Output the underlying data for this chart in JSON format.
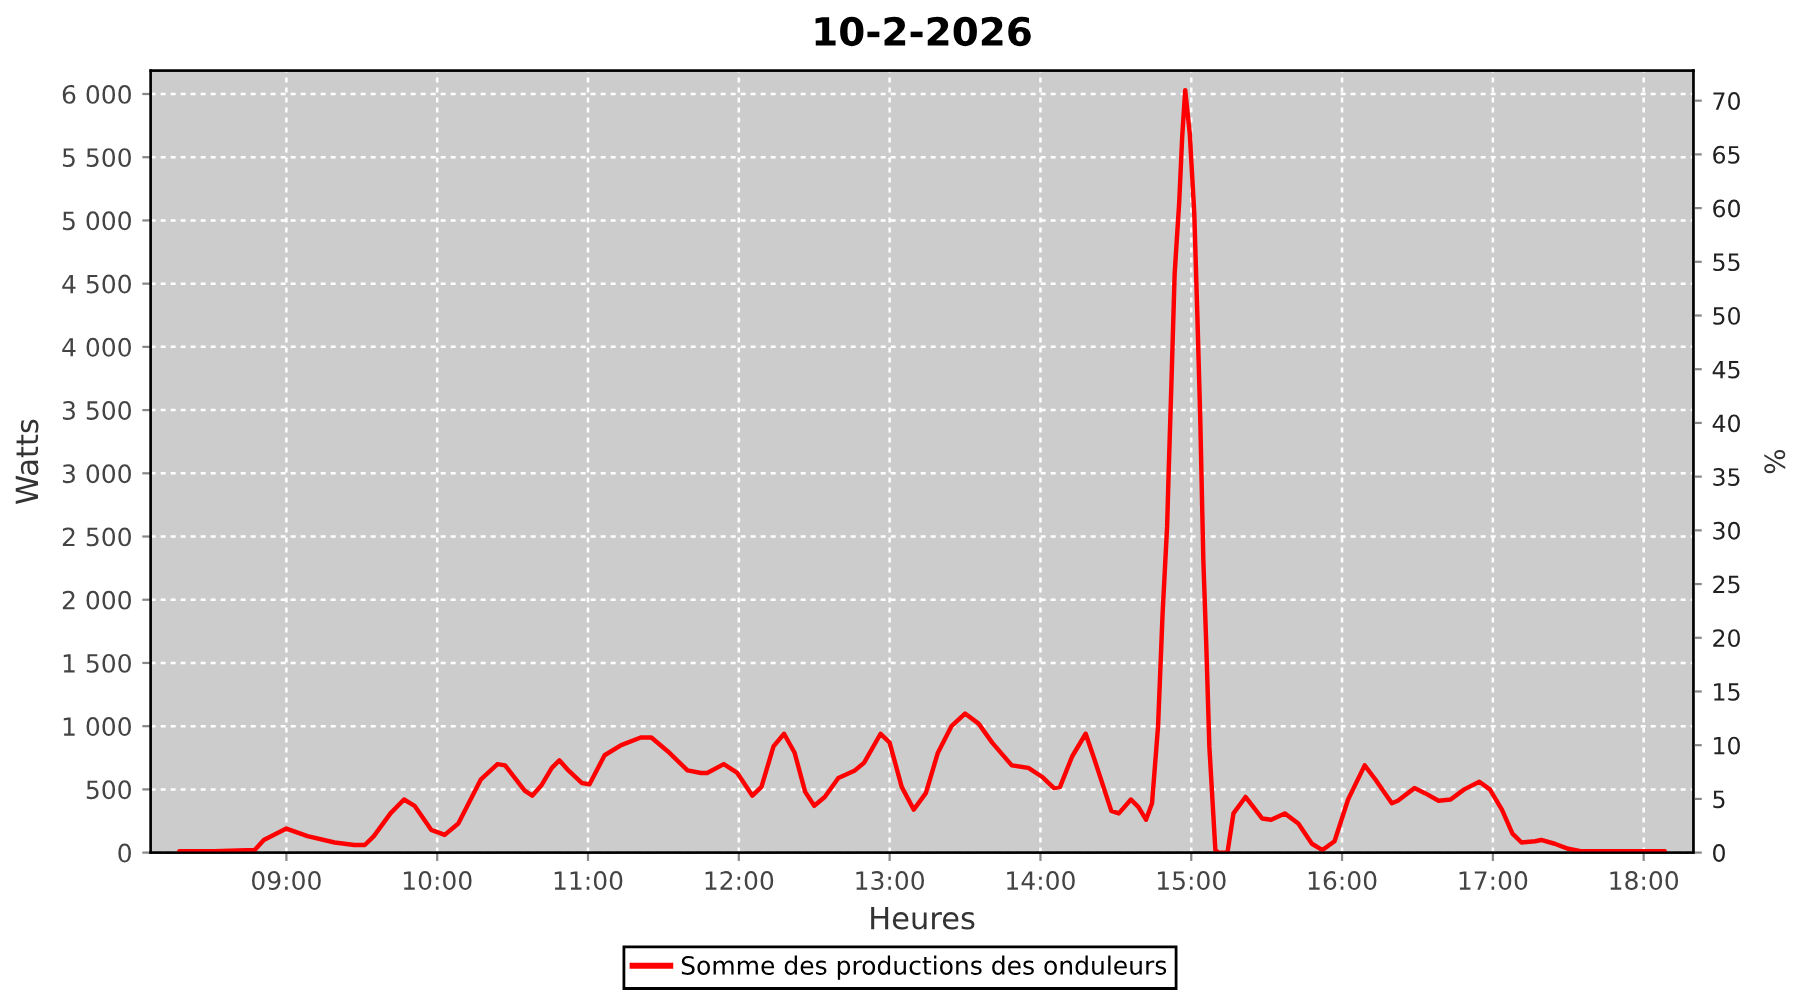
{
  "chart_data": {
    "type": "line",
    "title": "10-2-2026",
    "xlabel": "Heures",
    "ylabel": "Watts",
    "y2label": "%",
    "x": [
      8.29,
      8.52,
      8.79,
      8.85,
      9.0,
      9.14,
      9.32,
      9.45,
      9.52,
      9.58,
      9.69,
      9.78,
      9.85,
      9.96,
      10.05,
      10.14,
      10.29,
      10.4,
      10.45,
      10.58,
      10.63,
      10.69,
      10.76,
      10.81,
      10.87,
      10.96,
      11.01,
      11.11,
      11.22,
      11.35,
      11.42,
      11.53,
      11.66,
      11.75,
      11.79,
      11.9,
      11.99,
      12.09,
      12.15,
      12.23,
      12.3,
      12.37,
      12.44,
      12.5,
      12.57,
      12.66,
      12.77,
      12.83,
      12.94,
      13.0,
      13.08,
      13.16,
      13.24,
      13.32,
      13.41,
      13.5,
      13.59,
      13.68,
      13.81,
      13.92,
      14.01,
      14.09,
      14.13,
      14.21,
      14.3,
      14.36,
      14.47,
      14.52,
      14.6,
      14.65,
      14.7,
      14.74,
      14.78,
      14.81,
      14.84,
      14.85,
      14.87,
      14.89,
      14.92,
      14.94,
      14.96,
      14.99,
      15.02,
      15.04,
      15.06,
      15.08,
      15.1,
      15.12,
      15.16,
      15.18,
      15.24,
      15.28,
      15.36,
      15.47,
      15.53,
      15.62,
      15.71,
      15.8,
      15.87,
      15.95,
      16.04,
      16.15,
      16.22,
      16.33,
      16.37,
      16.48,
      16.55,
      16.64,
      16.72,
      16.81,
      16.91,
      16.98,
      17.06,
      17.13,
      17.19,
      17.28,
      17.32,
      17.41,
      17.5,
      17.59,
      17.81,
      18.14
    ],
    "series": [
      {
        "name": "Somme des productions des onduleurs",
        "color": "#ff0000",
        "values": [
          10,
          10,
          20,
          100,
          190,
          130,
          80,
          60,
          60,
          130,
          310,
          420,
          370,
          180,
          140,
          230,
          580,
          700,
          690,
          490,
          450,
          530,
          670,
          730,
          650,
          550,
          540,
          770,
          850,
          910,
          910,
          800,
          650,
          630,
          630,
          700,
          630,
          450,
          520,
          840,
          940,
          790,
          480,
          370,
          440,
          590,
          650,
          710,
          940,
          870,
          520,
          340,
          470,
          790,
          1000,
          1100,
          1020,
          870,
          690,
          670,
          600,
          510,
          520,
          760,
          940,
          730,
          330,
          310,
          420,
          360,
          260,
          390,
          1000,
          1890,
          2580,
          3000,
          3770,
          4580,
          5140,
          5660,
          6030,
          5690,
          5060,
          4270,
          3420,
          2320,
          1630,
          840,
          20,
          0,
          0,
          310,
          440,
          270,
          260,
          310,
          230,
          70,
          20,
          90,
          420,
          690,
          580,
          390,
          410,
          510,
          470,
          410,
          420,
          500,
          560,
          500,
          340,
          150,
          80,
          90,
          100,
          70,
          30,
          10,
          10,
          10
        ]
      }
    ],
    "xlim": [
      8.1,
      18.33
    ],
    "xticks": [
      {
        "value": 9,
        "label": "09:00"
      },
      {
        "value": 10,
        "label": "10:00"
      },
      {
        "value": 11,
        "label": "11:00"
      },
      {
        "value": 12,
        "label": "12:00"
      },
      {
        "value": 13,
        "label": "13:00"
      },
      {
        "value": 14,
        "label": "14:00"
      },
      {
        "value": 15,
        "label": "15:00"
      },
      {
        "value": 16,
        "label": "16:00"
      },
      {
        "value": 17,
        "label": "17:00"
      },
      {
        "value": 18,
        "label": "18:00"
      }
    ],
    "ylim": [
      0,
      6185
    ],
    "yticks": [
      0,
      500,
      {
        "value": 1000,
        "label": "1 000"
      },
      {
        "value": 1500,
        "label": "1 500"
      },
      {
        "value": 2000,
        "label": "2 000"
      },
      {
        "value": 2500,
        "label": "2 500"
      },
      {
        "value": 3000,
        "label": "3 000"
      },
      {
        "value": 3500,
        "label": "3 500"
      },
      {
        "value": 4000,
        "label": "4 000"
      },
      {
        "value": 4500,
        "label": "4 500"
      },
      {
        "value": 5000,
        "label": "5 000"
      },
      {
        "value": 5500,
        "label": "5 500"
      },
      {
        "value": 6000,
        "label": "6 000"
      }
    ],
    "y2lim": [
      0,
      72.8
    ],
    "y2ticks": [
      0,
      5,
      10,
      15,
      20,
      25,
      30,
      35,
      40,
      45,
      50,
      55,
      60,
      65,
      70
    ],
    "grid": true,
    "legend": "bottom"
  }
}
